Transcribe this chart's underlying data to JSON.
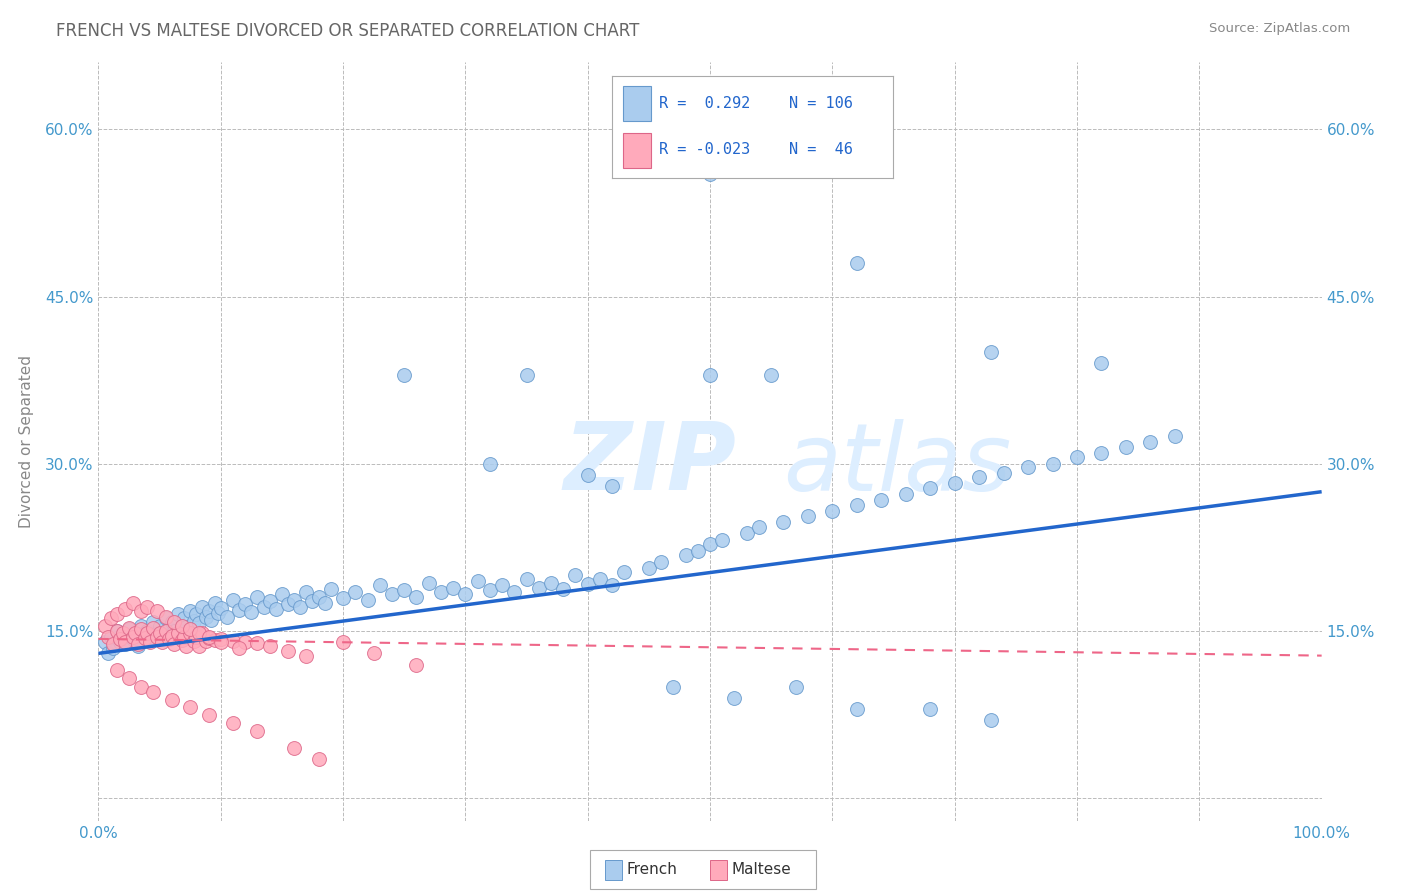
{
  "title": "FRENCH VS MALTESE DIVORCED OR SEPARATED CORRELATION CHART",
  "source": "Source: ZipAtlas.com",
  "ylabel": "Divorced or Separated",
  "legend_r_values": [
    "R =  0.292",
    "R = -0.023"
  ],
  "legend_n_values": [
    "N = 106",
    "N =  46"
  ],
  "french_color": "#aaccee",
  "french_edge": "#6699cc",
  "maltese_color": "#ffaabb",
  "maltese_edge": "#dd6688",
  "french_line_color": "#2266cc",
  "maltese_line_color": "#ee6688",
  "background_color": "#ffffff",
  "grid_color": "#bbbbbb",
  "title_color": "#555555",
  "axis_label_color": "#4499cc",
  "watermark_color": "#ddeeff",
  "xlim": [
    0.0,
    1.0
  ],
  "ylim": [
    -0.02,
    0.66
  ],
  "xticks": [
    0.0,
    0.1,
    0.2,
    0.3,
    0.4,
    0.5,
    0.6,
    0.7,
    0.8,
    0.9,
    1.0
  ],
  "yticks": [
    0.0,
    0.15,
    0.3,
    0.45,
    0.6
  ],
  "ytick_labels": [
    "",
    "15.0%",
    "30.0%",
    "45.0%",
    "60.0%"
  ],
  "xtick_labels": [
    "0.0%",
    "",
    "",
    "",
    "",
    "",
    "",
    "",
    "",
    "",
    "100.0%"
  ],
  "french_scatter_x": [
    0.005,
    0.008,
    0.01,
    0.012,
    0.015,
    0.018,
    0.02,
    0.022,
    0.025,
    0.028,
    0.03,
    0.032,
    0.035,
    0.038,
    0.04,
    0.042,
    0.045,
    0.048,
    0.05,
    0.052,
    0.055,
    0.058,
    0.06,
    0.062,
    0.065,
    0.068,
    0.07,
    0.072,
    0.075,
    0.078,
    0.08,
    0.082,
    0.085,
    0.088,
    0.09,
    0.092,
    0.095,
    0.098,
    0.1,
    0.105,
    0.11,
    0.115,
    0.12,
    0.125,
    0.13,
    0.135,
    0.14,
    0.145,
    0.15,
    0.155,
    0.16,
    0.165,
    0.17,
    0.175,
    0.18,
    0.185,
    0.19,
    0.2,
    0.21,
    0.22,
    0.23,
    0.24,
    0.25,
    0.26,
    0.27,
    0.28,
    0.29,
    0.3,
    0.31,
    0.32,
    0.33,
    0.34,
    0.35,
    0.36,
    0.37,
    0.38,
    0.39,
    0.4,
    0.41,
    0.42,
    0.43,
    0.45,
    0.46,
    0.48,
    0.49,
    0.5,
    0.51,
    0.53,
    0.54,
    0.56,
    0.58,
    0.6,
    0.62,
    0.64,
    0.66,
    0.68,
    0.7,
    0.72,
    0.74,
    0.76,
    0.78,
    0.8,
    0.82,
    0.84,
    0.86,
    0.88
  ],
  "french_scatter_y": [
    0.14,
    0.13,
    0.145,
    0.135,
    0.15,
    0.14,
    0.148,
    0.138,
    0.152,
    0.143,
    0.147,
    0.137,
    0.155,
    0.145,
    0.15,
    0.142,
    0.158,
    0.148,
    0.155,
    0.147,
    0.162,
    0.152,
    0.158,
    0.15,
    0.165,
    0.155,
    0.162,
    0.154,
    0.168,
    0.159,
    0.165,
    0.157,
    0.172,
    0.163,
    0.168,
    0.16,
    0.175,
    0.166,
    0.171,
    0.163,
    0.178,
    0.169,
    0.174,
    0.167,
    0.181,
    0.172,
    0.177,
    0.17,
    0.183,
    0.174,
    0.178,
    0.172,
    0.185,
    0.177,
    0.181,
    0.175,
    0.188,
    0.18,
    0.185,
    0.178,
    0.191,
    0.183,
    0.187,
    0.181,
    0.193,
    0.185,
    0.189,
    0.183,
    0.195,
    0.187,
    0.191,
    0.185,
    0.197,
    0.189,
    0.193,
    0.188,
    0.2,
    0.192,
    0.197,
    0.191,
    0.203,
    0.207,
    0.212,
    0.218,
    0.222,
    0.228,
    0.232,
    0.238,
    0.243,
    0.248,
    0.253,
    0.258,
    0.263,
    0.268,
    0.273,
    0.278,
    0.283,
    0.288,
    0.292,
    0.297,
    0.3,
    0.306,
    0.31,
    0.315,
    0.32,
    0.325
  ],
  "french_outliers_x": [
    0.35,
    0.5,
    0.62,
    0.25,
    0.73,
    0.82,
    0.5,
    0.55,
    0.42,
    0.47,
    0.52,
    0.57,
    0.62,
    0.68,
    0.73,
    0.32,
    0.4
  ],
  "french_outliers_y": [
    0.38,
    0.56,
    0.48,
    0.38,
    0.4,
    0.39,
    0.38,
    0.38,
    0.28,
    0.1,
    0.09,
    0.1,
    0.08,
    0.08,
    0.07,
    0.3,
    0.29
  ],
  "maltese_scatter_x": [
    0.005,
    0.008,
    0.01,
    0.012,
    0.015,
    0.018,
    0.02,
    0.022,
    0.025,
    0.028,
    0.03,
    0.032,
    0.035,
    0.038,
    0.04,
    0.042,
    0.045,
    0.048,
    0.05,
    0.052,
    0.055,
    0.058,
    0.06,
    0.062,
    0.065,
    0.068,
    0.07,
    0.072,
    0.075,
    0.078,
    0.08,
    0.082,
    0.085,
    0.088,
    0.09,
    0.095,
    0.1,
    0.11,
    0.12,
    0.13,
    0.14,
    0.155,
    0.17,
    0.2,
    0.225,
    0.26
  ],
  "maltese_scatter_y": [
    0.155,
    0.145,
    0.162,
    0.138,
    0.15,
    0.143,
    0.148,
    0.14,
    0.153,
    0.145,
    0.148,
    0.138,
    0.152,
    0.144,
    0.148,
    0.14,
    0.153,
    0.145,
    0.148,
    0.14,
    0.15,
    0.143,
    0.146,
    0.138,
    0.148,
    0.142,
    0.145,
    0.137,
    0.148,
    0.141,
    0.145,
    0.137,
    0.148,
    0.141,
    0.144,
    0.142,
    0.143,
    0.141,
    0.14,
    0.139,
    0.137,
    0.132,
    0.128,
    0.14,
    0.13,
    0.12
  ],
  "maltese_outliers_x": [
    0.015,
    0.022,
    0.028,
    0.035,
    0.04,
    0.048,
    0.055,
    0.062,
    0.068,
    0.075,
    0.082,
    0.09,
    0.1,
    0.115,
    0.015,
    0.025,
    0.035,
    0.045,
    0.06,
    0.075,
    0.09,
    0.11,
    0.13,
    0.16,
    0.18
  ],
  "maltese_outliers_y": [
    0.165,
    0.17,
    0.175,
    0.168,
    0.172,
    0.168,
    0.163,
    0.158,
    0.155,
    0.152,
    0.148,
    0.145,
    0.14,
    0.135,
    0.115,
    0.108,
    0.1,
    0.095,
    0.088,
    0.082,
    0.075,
    0.068,
    0.06,
    0.045,
    0.035
  ],
  "french_line": {
    "x0": 0.0,
    "x1": 1.0,
    "y0": 0.13,
    "y1": 0.275
  },
  "maltese_line": {
    "x0": 0.0,
    "x1": 1.0,
    "y0": 0.143,
    "y1": 0.128
  }
}
